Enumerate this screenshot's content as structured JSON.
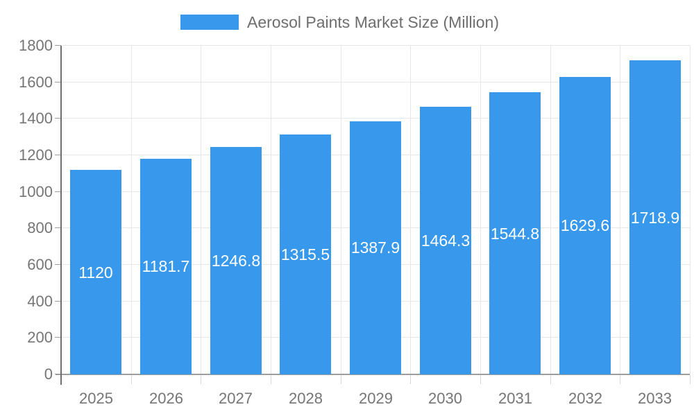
{
  "legend": {
    "label": "Aerosol Paints Market Size (Million)"
  },
  "chart_data": {
    "type": "bar",
    "title": "",
    "categories": [
      "2025",
      "2026",
      "2027",
      "2028",
      "2029",
      "2030",
      "2031",
      "2032",
      "2033"
    ],
    "series": [
      {
        "name": "Aerosol Paints Market Size (Million)",
        "values": [
          1120,
          1181.7,
          1246.8,
          1315.5,
          1387.9,
          1464.3,
          1544.8,
          1629.6,
          1718.9
        ]
      }
    ],
    "value_labels": [
      "1120",
      "1181.7",
      "1246.8",
      "1315.5",
      "1387.9",
      "1464.3",
      "1544.8",
      "1629.6",
      "1718.9"
    ],
    "xlabel": "",
    "ylabel": "",
    "ylim": [
      0,
      1800
    ],
    "yticks": [
      0,
      200,
      400,
      600,
      800,
      1000,
      1200,
      1400,
      1600,
      1800
    ],
    "grid": true,
    "legend_position": "top",
    "colors": {
      "bar": "#3899EC",
      "grid": "#E6E6E6",
      "axis_line": "#6E6E6E",
      "baseline": "#9E9E9E",
      "x_tick": "#D6D6D6",
      "y_tick": "#9E9E9E",
      "axis_text": "#757575",
      "value_label": "#FFFFFF",
      "legend_text": "#6E6E6E",
      "background": "#FFFFFF"
    }
  }
}
